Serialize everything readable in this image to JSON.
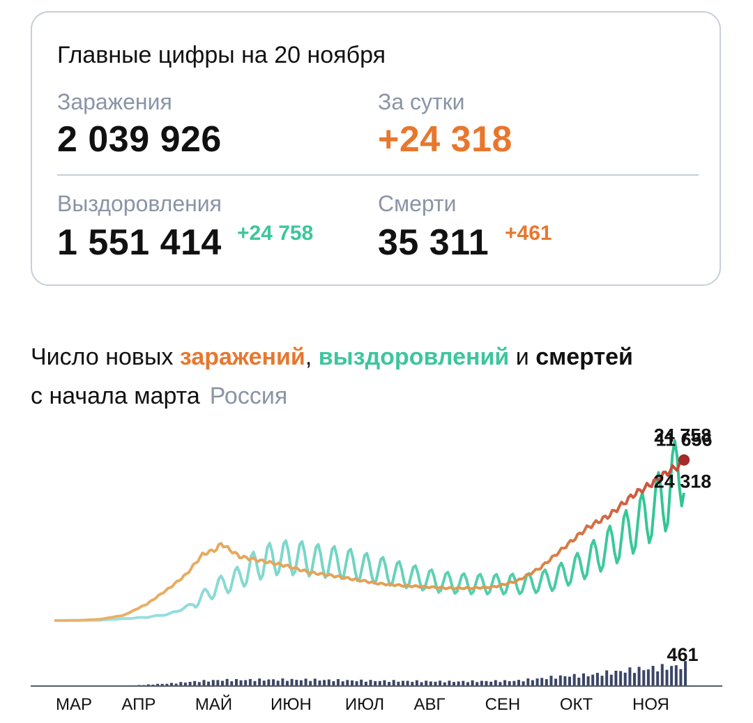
{
  "summary": {
    "title": "Главные цифры на 20 ноября",
    "infections_label": "Заражения",
    "infections_value": "2 039 926",
    "daily_label": "За сутки",
    "daily_value": "+24 318",
    "recoveries_label": "Выздоровления",
    "recoveries_value": "1 551 414",
    "recoveries_delta": "+24 758",
    "deaths_label": "Смерти",
    "deaths_value": "35 311",
    "deaths_delta": "+461"
  },
  "heading": {
    "prefix": "Число новых ",
    "infections_word": "заражений",
    "comma": ",",
    "recoveries_word": "выздоровлений",
    "and_word": " и ",
    "deaths_word": "смертей",
    "line2": "с начала марта",
    "region": "Россия"
  },
  "colors": {
    "infections_early": "#e9b46a",
    "infections_mid": "#e09a4f",
    "infections_late": "#c9453a",
    "recoveries_early": "#a9e2ee",
    "recoveries_late": "#2ec590",
    "deaths_bars": "#3b4566",
    "marker": "#a52a2a",
    "baseline": "#555a66"
  },
  "chart_data": {
    "type": "line",
    "x_unit": "day since 1 March 2020",
    "x_months": [
      "МАР",
      "АПР",
      "МАЙ",
      "ИЮН",
      "ИЮЛ",
      "АВГ",
      "СЕН",
      "ОКТ",
      "НОЯ"
    ],
    "ylim": [
      0,
      26000
    ],
    "annotations": {
      "infections_peak": "11 656",
      "recoveries_last": "24 758",
      "infections_last": "24 318",
      "deaths_last": "461"
    },
    "series": [
      {
        "name": "заражений",
        "points": [
          [
            0,
            0
          ],
          [
            10,
            10
          ],
          [
            20,
            200
          ],
          [
            30,
            800
          ],
          [
            40,
            2500
          ],
          [
            50,
            5000
          ],
          [
            57,
            7000
          ],
          [
            64,
            10000
          ],
          [
            70,
            10800
          ],
          [
            72,
            11656
          ],
          [
            80,
            9700
          ],
          [
            90,
            9000
          ],
          [
            100,
            8300
          ],
          [
            110,
            7300
          ],
          [
            120,
            6800
          ],
          [
            130,
            6200
          ],
          [
            140,
            5600
          ],
          [
            150,
            5300
          ],
          [
            160,
            5100
          ],
          [
            170,
            4900
          ],
          [
            180,
            4900
          ],
          [
            190,
            5100
          ],
          [
            200,
            6000
          ],
          [
            210,
            8000
          ],
          [
            220,
            11000
          ],
          [
            230,
            14000
          ],
          [
            240,
            16000
          ],
          [
            250,
            19000
          ],
          [
            257,
            20500
          ],
          [
            265,
            22500
          ],
          [
            270,
            23500
          ],
          [
            272,
            24318
          ]
        ]
      },
      {
        "name": "выздоровлений",
        "points": [
          [
            0,
            0
          ],
          [
            20,
            50
          ],
          [
            40,
            500
          ],
          [
            50,
            1000
          ],
          [
            60,
            2500
          ],
          [
            70,
            5000
          ],
          [
            80,
            6500
          ],
          [
            85,
            8000
          ],
          [
            95,
            9500
          ],
          [
            105,
            9500
          ],
          [
            115,
            9000
          ],
          [
            125,
            8700
          ],
          [
            135,
            8000
          ],
          [
            145,
            7300
          ],
          [
            155,
            6600
          ],
          [
            165,
            5900
          ],
          [
            175,
            5600
          ],
          [
            185,
            5500
          ],
          [
            195,
            5500
          ],
          [
            205,
            5600
          ],
          [
            215,
            6200
          ],
          [
            225,
            7800
          ],
          [
            235,
            10000
          ],
          [
            245,
            12500
          ],
          [
            255,
            15500
          ],
          [
            265,
            19000
          ],
          [
            270,
            23000
          ],
          [
            272,
            24758
          ]
        ]
      },
      {
        "name": "смертей",
        "points": [
          [
            0,
            0
          ],
          [
            30,
            5
          ],
          [
            50,
            60
          ],
          [
            60,
            100
          ],
          [
            70,
            130
          ],
          [
            90,
            140
          ],
          [
            110,
            140
          ],
          [
            130,
            120
          ],
          [
            150,
            110
          ],
          [
            170,
            100
          ],
          [
            190,
            110
          ],
          [
            200,
            120
          ],
          [
            210,
            170
          ],
          [
            220,
            220
          ],
          [
            230,
            240
          ],
          [
            240,
            300
          ],
          [
            250,
            360
          ],
          [
            260,
            400
          ],
          [
            270,
            440
          ],
          [
            272,
            461
          ]
        ]
      }
    ]
  }
}
